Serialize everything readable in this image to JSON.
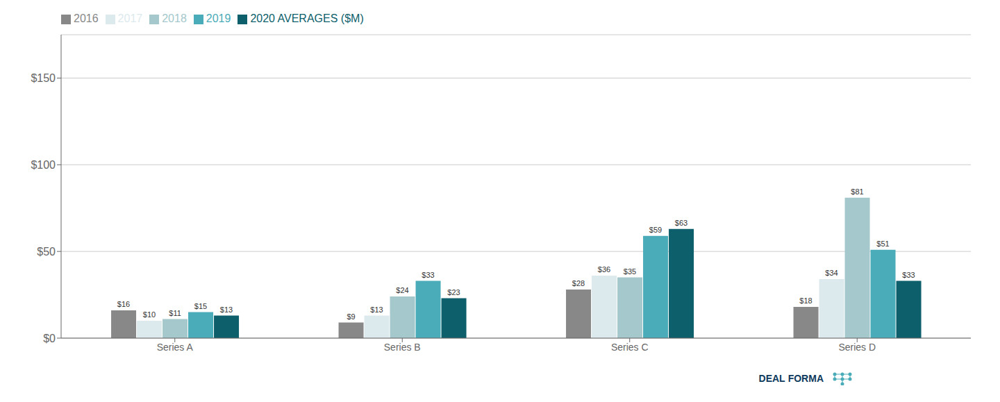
{
  "chart_data": {
    "type": "bar",
    "categories": [
      "Series A",
      "Series B",
      "Series C",
      "Series D"
    ],
    "series": [
      {
        "name": "2016",
        "color": "#888888",
        "values": [
          16,
          9,
          28,
          18
        ],
        "value_labels": [
          "$16",
          "$9",
          "$28",
          "$18"
        ]
      },
      {
        "name": "2017",
        "color": "#ddeaed",
        "values": [
          10,
          13,
          36,
          34
        ],
        "value_labels": [
          "$10",
          "$13",
          "$36",
          "$34"
        ]
      },
      {
        "name": "2018",
        "color": "#a4c8cc",
        "values": [
          11,
          24,
          35,
          81
        ],
        "value_labels": [
          "$11",
          "$24",
          "$35",
          "$81"
        ]
      },
      {
        "name": "2019",
        "color": "#4aacb8",
        "values": [
          15,
          33,
          59,
          51
        ],
        "value_labels": [
          "$15",
          "$33",
          "$59",
          "$51"
        ]
      },
      {
        "name": "2020 AVERAGES ($M)",
        "color": "#0c5f6b",
        "values": [
          13,
          23,
          63,
          33
        ],
        "value_labels": [
          "$13",
          "$23",
          "$63",
          "$33"
        ]
      }
    ],
    "ylim": [
      0,
      175
    ],
    "yticks": [
      {
        "value": 0,
        "label": "$0"
      },
      {
        "value": 50,
        "label": "$50"
      },
      {
        "value": 100,
        "label": "$100"
      },
      {
        "value": 150,
        "label": "$150"
      }
    ],
    "grid": true,
    "legend": "upper left",
    "data_labels": true,
    "annotations": [
      "DEAL",
      "FORMA"
    ]
  }
}
